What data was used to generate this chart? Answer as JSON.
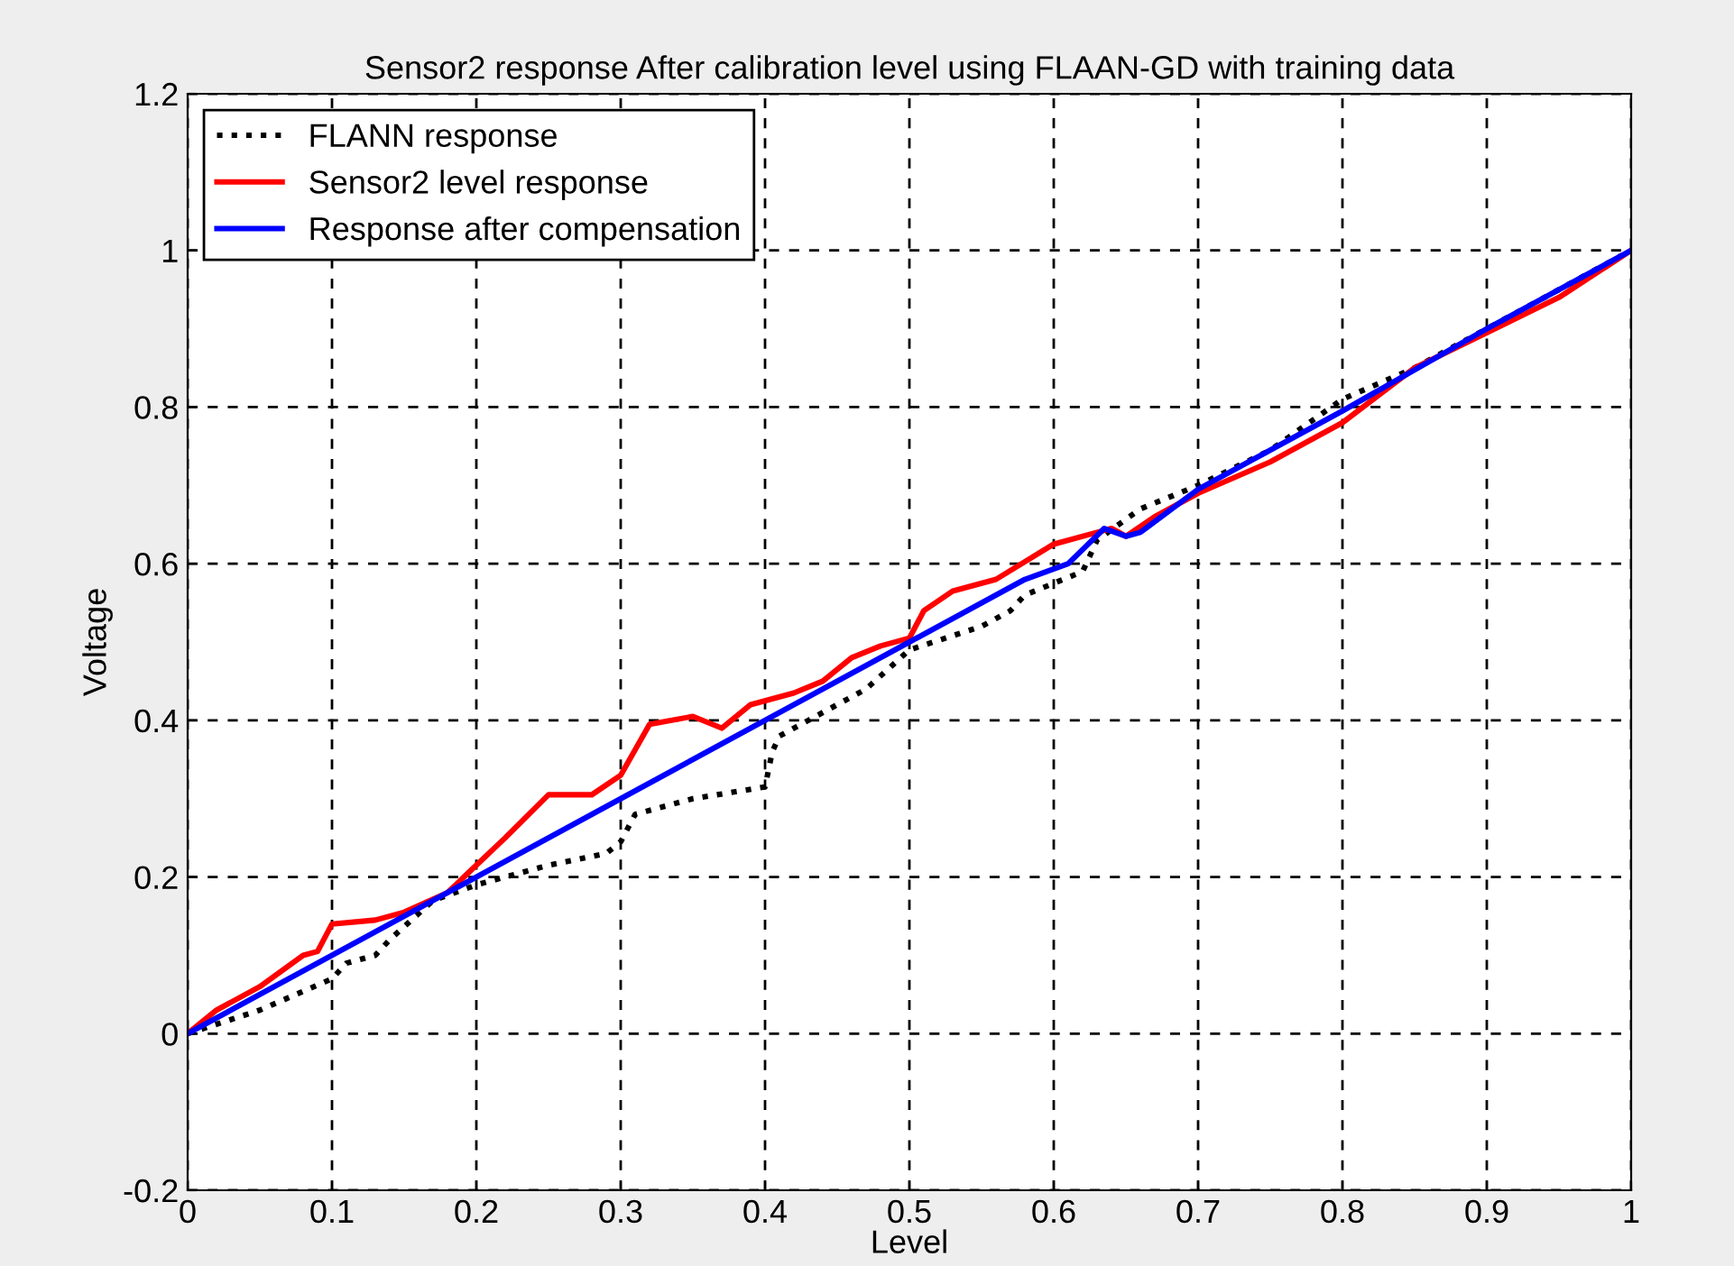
{
  "chart_data": {
    "type": "line",
    "title": "Sensor2 response After calibration level using FLAAN-GD with training data",
    "xlabel": "Level",
    "ylabel": "Voltage",
    "xlim": [
      0,
      1
    ],
    "ylim": [
      -0.2,
      1.2
    ],
    "xticks": [
      0,
      0.1,
      0.2,
      0.3,
      0.4,
      0.5,
      0.6,
      0.7,
      0.8,
      0.9,
      1
    ],
    "yticks": [
      -0.2,
      0,
      0.2,
      0.4,
      0.6,
      0.8,
      1,
      1.2
    ],
    "grid": true,
    "legend": "top left",
    "series": [
      {
        "name": "FLANN response",
        "color": "#000000",
        "line_style": "dotted",
        "x": [
          0,
          0.05,
          0.1,
          0.11,
          0.13,
          0.14,
          0.17,
          0.2,
          0.25,
          0.29,
          0.3,
          0.31,
          0.35,
          0.4,
          0.405,
          0.41,
          0.43,
          0.47,
          0.5,
          0.55,
          0.57,
          0.58,
          0.62,
          0.63,
          0.66,
          0.7,
          0.75,
          0.8,
          0.85,
          0.9,
          1
        ],
        "values": [
          0,
          0.03,
          0.07,
          0.09,
          0.1,
          0.12,
          0.17,
          0.19,
          0.215,
          0.23,
          0.245,
          0.28,
          0.3,
          0.315,
          0.36,
          0.38,
          0.4,
          0.44,
          0.49,
          0.52,
          0.54,
          0.56,
          0.59,
          0.63,
          0.67,
          0.7,
          0.745,
          0.81,
          0.85,
          0.9,
          1
        ]
      },
      {
        "name": "Sensor2 level response",
        "color": "#ff0000",
        "line_style": "solid",
        "x": [
          0,
          0.02,
          0.05,
          0.08,
          0.09,
          0.1,
          0.13,
          0.15,
          0.18,
          0.2,
          0.22,
          0.25,
          0.28,
          0.3,
          0.32,
          0.35,
          0.37,
          0.39,
          0.42,
          0.44,
          0.46,
          0.48,
          0.5,
          0.51,
          0.53,
          0.56,
          0.6,
          0.63,
          0.64,
          0.65,
          0.67,
          0.7,
          0.75,
          0.8,
          0.85,
          0.9,
          0.95,
          1
        ],
        "values": [
          0,
          0.03,
          0.06,
          0.1,
          0.105,
          0.14,
          0.145,
          0.155,
          0.18,
          0.215,
          0.25,
          0.305,
          0.305,
          0.33,
          0.395,
          0.405,
          0.39,
          0.42,
          0.435,
          0.45,
          0.48,
          0.495,
          0.505,
          0.54,
          0.565,
          0.58,
          0.625,
          0.64,
          0.645,
          0.635,
          0.66,
          0.69,
          0.73,
          0.78,
          0.85,
          0.895,
          0.94,
          1
        ]
      },
      {
        "name": "Response after compensation",
        "color": "#0000ff",
        "line_style": "solid",
        "x": [
          0,
          0.3,
          0.5,
          0.58,
          0.61,
          0.635,
          0.65,
          0.66,
          0.7,
          0.8,
          0.9,
          1
        ],
        "values": [
          0,
          0.3,
          0.5,
          0.58,
          0.6,
          0.645,
          0.635,
          0.64,
          0.695,
          0.795,
          0.9,
          1
        ]
      }
    ]
  }
}
